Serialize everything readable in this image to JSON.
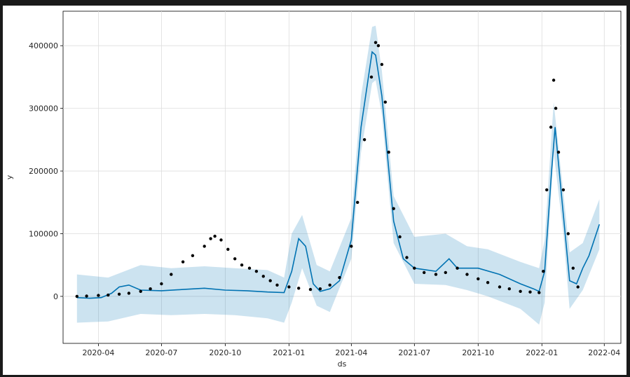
{
  "chart_data": {
    "type": "line",
    "title": "",
    "xlabel": "ds",
    "ylabel": "y",
    "xlim": [
      "2020-02-10",
      "2022-04-25"
    ],
    "ylim": [
      -75000,
      455000
    ],
    "grid": true,
    "x_ticks": [
      "2020-04",
      "2020-07",
      "2020-10",
      "2021-01",
      "2021-04",
      "2021-07",
      "2021-10",
      "2022-01",
      "2022-04"
    ],
    "y_ticks": [
      0,
      100000,
      200000,
      300000,
      400000
    ],
    "y_tick_labels": [
      "0",
      "100000",
      "200000",
      "300000",
      "400000"
    ],
    "colors": {
      "observed": "#000000",
      "forecast": "#0072B2",
      "uncertainty": "#0072B2",
      "grid": "#dddddd"
    },
    "series": [
      {
        "kind": "scatter",
        "role": "observed",
        "x": [
          "2020-03-01",
          "2020-03-15",
          "2020-04-01",
          "2020-04-15",
          "2020-05-01",
          "2020-05-15",
          "2020-06-01",
          "2020-06-15",
          "2020-07-01",
          "2020-07-15",
          "2020-08-01",
          "2020-08-15",
          "2020-09-01",
          "2020-09-10",
          "2020-09-16",
          "2020-09-25",
          "2020-10-05",
          "2020-10-15",
          "2020-10-25",
          "2020-11-05",
          "2020-11-15",
          "2020-11-25",
          "2020-12-05",
          "2020-12-15",
          "2021-01-01",
          "2021-01-15",
          "2021-02-01",
          "2021-02-15",
          "2021-03-01",
          "2021-03-15",
          "2021-04-01",
          "2021-04-10",
          "2021-04-20",
          "2021-04-30",
          "2021-05-06",
          "2021-05-10",
          "2021-05-15",
          "2021-05-20",
          "2021-05-25",
          "2021-06-01",
          "2021-06-10",
          "2021-06-20",
          "2021-07-01",
          "2021-07-15",
          "2021-08-01",
          "2021-08-15",
          "2021-09-01",
          "2021-09-15",
          "2021-10-01",
          "2021-10-15",
          "2021-11-01",
          "2021-11-15",
          "2021-12-01",
          "2021-12-15",
          "2021-12-28",
          "2022-01-03",
          "2022-01-08",
          "2022-01-14",
          "2022-01-18",
          "2022-01-21",
          "2022-01-25",
          "2022-02-01",
          "2022-02-08",
          "2022-02-15",
          "2022-02-22"
        ],
        "y": [
          0,
          500,
          1500,
          2000,
          3500,
          5000,
          8000,
          12000,
          20000,
          35000,
          55000,
          65000,
          80000,
          92000,
          96000,
          90000,
          75000,
          60000,
          50000,
          45000,
          40000,
          32000,
          25000,
          18000,
          15000,
          13000,
          11000,
          12000,
          18000,
          30000,
          80000,
          150000,
          250000,
          350000,
          405000,
          400000,
          370000,
          310000,
          230000,
          140000,
          95000,
          62000,
          45000,
          38000,
          35000,
          38000,
          45000,
          35000,
          28000,
          22000,
          15000,
          12000,
          8000,
          7000,
          6000,
          40000,
          170000,
          270000,
          345000,
          300000,
          230000,
          170000,
          100000,
          45000,
          15000
        ]
      },
      {
        "kind": "line",
        "role": "forecast",
        "x": [
          "2020-03-01",
          "2020-03-20",
          "2020-04-05",
          "2020-04-20",
          "2020-05-01",
          "2020-05-15",
          "2020-06-01",
          "2020-07-01",
          "2020-08-01",
          "2020-09-01",
          "2020-10-01",
          "2020-11-01",
          "2020-12-01",
          "2020-12-25",
          "2021-01-05",
          "2021-01-15",
          "2021-01-25",
          "2021-02-05",
          "2021-02-15",
          "2021-03-01",
          "2021-03-15",
          "2021-04-01",
          "2021-04-15",
          "2021-05-01",
          "2021-05-06",
          "2021-05-15",
          "2021-06-01",
          "2021-06-15",
          "2021-07-01",
          "2021-08-01",
          "2021-08-20",
          "2021-09-01",
          "2021-10-01",
          "2021-11-01",
          "2021-12-01",
          "2021-12-20",
          "2021-12-28",
          "2022-01-05",
          "2022-01-15",
          "2022-01-20",
          "2022-02-01",
          "2022-02-10",
          "2022-02-20",
          "2022-03-01",
          "2022-03-10",
          "2022-03-25"
        ],
        "y": [
          -2000,
          -3000,
          -2000,
          5000,
          15000,
          18000,
          10000,
          9000,
          11000,
          13000,
          10000,
          9000,
          7000,
          6000,
          40000,
          92000,
          80000,
          20000,
          8000,
          12000,
          25000,
          90000,
          270000,
          390000,
          385000,
          320000,
          120000,
          60000,
          45000,
          40000,
          60000,
          45000,
          45000,
          35000,
          20000,
          12000,
          8000,
          40000,
          200000,
          270000,
          130000,
          25000,
          20000,
          45000,
          65000,
          115000
        ]
      }
    ],
    "uncertainty_band": {
      "x": [
        "2020-03-01",
        "2020-04-15",
        "2020-06-01",
        "2020-07-15",
        "2020-09-01",
        "2020-10-15",
        "2020-12-01",
        "2020-12-25",
        "2021-01-05",
        "2021-01-20",
        "2021-02-10",
        "2021-03-01",
        "2021-04-01",
        "2021-04-15",
        "2021-05-01",
        "2021-05-06",
        "2021-05-15",
        "2021-06-01",
        "2021-07-01",
        "2021-08-15",
        "2021-09-15",
        "2021-10-15",
        "2021-12-01",
        "2021-12-28",
        "2022-01-05",
        "2022-01-18",
        "2022-02-01",
        "2022-02-10",
        "2022-03-01",
        "2022-03-25"
      ],
      "lower": [
        -42000,
        -40000,
        -28000,
        -30000,
        -28000,
        -30000,
        -35000,
        -42000,
        -10000,
        45000,
        -15000,
        -25000,
        60000,
        230000,
        340000,
        345000,
        290000,
        85000,
        20000,
        18000,
        10000,
        0,
        -20000,
        -45000,
        -10000,
        230000,
        100000,
        -20000,
        10000,
        75000
      ],
      "upper": [
        35000,
        30000,
        50000,
        45000,
        48000,
        45000,
        42000,
        30000,
        100000,
        130000,
        50000,
        40000,
        125000,
        320000,
        430000,
        432000,
        360000,
        160000,
        95000,
        100000,
        80000,
        75000,
        55000,
        45000,
        90000,
        310000,
        165000,
        70000,
        85000,
        155000
      ]
    }
  }
}
